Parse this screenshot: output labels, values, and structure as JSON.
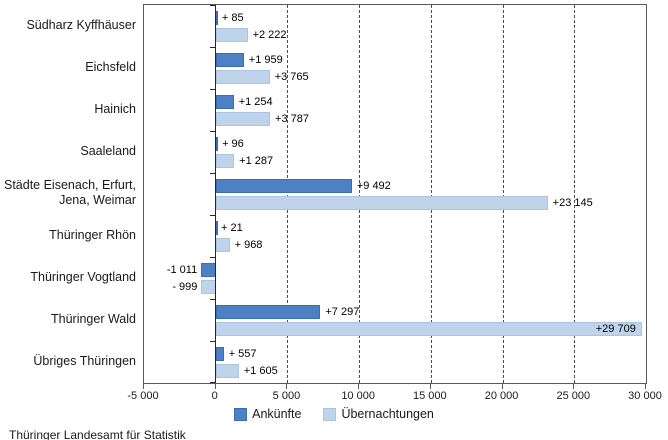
{
  "chart_data": {
    "type": "bar",
    "orientation": "horizontal-grouped",
    "title": "",
    "categories": [
      "Südharz Kyffhäuser",
      "Eichsfeld",
      "Hainich",
      "Saaleland",
      "Städte Eisenach, Erfurt,\nJena, Weimar",
      "Thüringer Rhön",
      "Thüringer Vogtland",
      "Thüringer Wald",
      "Übriges Thüringen"
    ],
    "series": [
      {
        "name": "Ankünfte",
        "color": "#4e81c4",
        "border_color": "#3a6db3",
        "values": [
          85,
          1959,
          1254,
          96,
          9492,
          21,
          -1011,
          7297,
          557
        ],
        "value_labels": [
          "+ 85",
          "+1 959",
          "+1 254",
          "+ 96",
          "+9 492",
          "+ 21",
          "-1 011",
          "+7 297",
          "+ 557"
        ]
      },
      {
        "name": "Übernachtungen",
        "color": "#bfd3ea",
        "border_color": "#aac4e2",
        "values": [
          2222,
          3765,
          3787,
          1287,
          23145,
          968,
          -999,
          29709,
          1605
        ],
        "value_labels": [
          "+2 222",
          "+3 765",
          "+3 787",
          "+1 287",
          "+23 145",
          "+ 968",
          "- 999",
          "+29 709",
          "+1 605"
        ]
      }
    ],
    "x_axis": {
      "min": -5000,
      "max": 30000,
      "tick_step": 5000,
      "tick_values": [
        -5000,
        0,
        5000,
        10000,
        15000,
        20000,
        25000,
        30000
      ],
      "tick_labels": [
        "-5 000",
        "0",
        "5 000",
        "10 000",
        "15 000",
        "20 000",
        "25 000",
        "30 000"
      ]
    },
    "grid": "vertical dashed lines every 5000, solid zero line, solid plot border",
    "legend_position": "bottom-center"
  },
  "footer": {
    "source": "Thüringer Landesamt für Statistik"
  }
}
